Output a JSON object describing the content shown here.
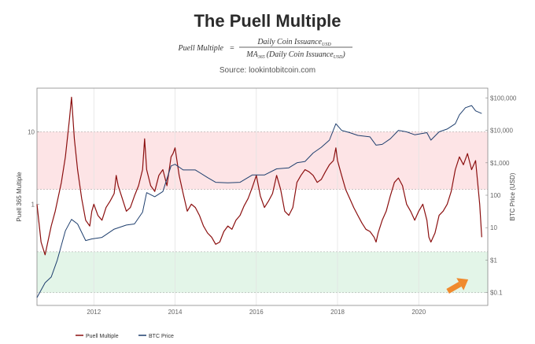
{
  "title": "The Puell Multiple",
  "formula": {
    "lhs": "Puell Multiple",
    "eq": "=",
    "numerator": "Daily Coin Issuance",
    "numerator_sub": "USD",
    "denominator_prefix": "MA",
    "denominator_prefix_sub": "365",
    "denominator_main": "(Daily Coin Issuance",
    "denominator_sub": "USD",
    "denominator_close": ")"
  },
  "source": "Source: lookintobitcoin.com",
  "colors": {
    "puell": "#8b0f0f",
    "btc": "#1f3f6e",
    "red_band": "#fde4e6",
    "green_band": "#e3f5e8",
    "arrow": "#f08a2e"
  },
  "icons": {
    "arrow": "arrow-up-right-icon"
  },
  "chart_data": {
    "type": "line",
    "xlim": [
      2010.6,
      2021.7
    ],
    "x_ticks": [
      "2012",
      "2014",
      "2016",
      "2018",
      "2020"
    ],
    "left_axis": {
      "label": "Puell 365 Multiple",
      "scale": "log",
      "range": [
        0.04,
        40
      ],
      "ticks": [
        "10",
        "1"
      ]
    },
    "right_axis": {
      "label": "BTC Price (USD)",
      "scale": "log",
      "range": [
        0.04,
        200000
      ],
      "ticks": [
        "$100,000",
        "$10,000",
        "$1,000",
        "100",
        "10",
        "$1",
        "$0.1"
      ]
    },
    "bands": [
      {
        "name": "red",
        "from": 1.6,
        "to": 10
      },
      {
        "name": "green",
        "from": 0.06,
        "to": 0.22
      }
    ],
    "legend": [
      "Puell Multiple",
      "BTC Price"
    ],
    "series": [
      {
        "name": "Puell Multiple",
        "x": [
          2010.6,
          2010.7,
          2010.8,
          2010.95,
          2011.05,
          2011.2,
          2011.3,
          2011.4,
          2011.45,
          2011.52,
          2011.6,
          2011.7,
          2011.8,
          2011.9,
          2011.95,
          2012.0,
          2012.1,
          2012.2,
          2012.3,
          2012.4,
          2012.5,
          2012.55,
          2012.6,
          2012.7,
          2012.8,
          2012.9,
          2013.0,
          2013.1,
          2013.2,
          2013.25,
          2013.3,
          2013.4,
          2013.5,
          2013.6,
          2013.7,
          2013.8,
          2013.9,
          2013.95,
          2014.0,
          2014.1,
          2014.2,
          2014.3,
          2014.4,
          2014.5,
          2014.6,
          2014.7,
          2014.8,
          2014.9,
          2015.0,
          2015.1,
          2015.2,
          2015.3,
          2015.4,
          2015.5,
          2015.6,
          2015.7,
          2015.8,
          2015.9,
          2016.0,
          2016.1,
          2016.2,
          2016.3,
          2016.4,
          2016.5,
          2016.6,
          2016.7,
          2016.8,
          2016.9,
          2017.0,
          2017.1,
          2017.2,
          2017.3,
          2017.4,
          2017.5,
          2017.6,
          2017.7,
          2017.8,
          2017.9,
          2017.96,
          2018.0,
          2018.1,
          2018.2,
          2018.3,
          2018.4,
          2018.5,
          2018.6,
          2018.7,
          2018.8,
          2018.9,
          2018.95,
          2019.0,
          2019.1,
          2019.2,
          2019.3,
          2019.4,
          2019.5,
          2019.6,
          2019.7,
          2019.8,
          2019.9,
          2020.0,
          2020.1,
          2020.2,
          2020.25,
          2020.3,
          2020.4,
          2020.5,
          2020.6,
          2020.7,
          2020.8,
          2020.9,
          2021.0,
          2021.1,
          2021.2,
          2021.3,
          2021.4,
          2021.5,
          2021.55
        ],
        "values": [
          1.0,
          0.3,
          0.2,
          0.5,
          0.8,
          2.0,
          4.5,
          15,
          30,
          8,
          3,
          1.2,
          0.6,
          0.5,
          0.8,
          1.0,
          0.7,
          0.6,
          0.9,
          1.1,
          1.4,
          2.5,
          1.8,
          1.2,
          0.8,
          0.9,
          1.3,
          1.8,
          3.0,
          8.0,
          3.0,
          1.8,
          1.5,
          2.5,
          3.0,
          1.8,
          4.5,
          5.0,
          6.0,
          2.5,
          1.4,
          0.8,
          1.0,
          0.9,
          0.7,
          0.5,
          0.4,
          0.35,
          0.28,
          0.3,
          0.42,
          0.5,
          0.45,
          0.6,
          0.7,
          0.95,
          1.2,
          1.7,
          2.5,
          1.3,
          0.9,
          1.1,
          1.4,
          2.5,
          1.6,
          0.8,
          0.7,
          0.9,
          2.0,
          2.5,
          3.0,
          2.8,
          2.5,
          2.0,
          2.2,
          2.8,
          3.5,
          4.0,
          6.0,
          4.0,
          2.5,
          1.6,
          1.2,
          0.9,
          0.7,
          0.55,
          0.45,
          0.42,
          0.35,
          0.3,
          0.4,
          0.6,
          0.8,
          1.3,
          2.0,
          2.3,
          1.8,
          1.0,
          0.8,
          0.6,
          0.8,
          1.0,
          0.6,
          0.35,
          0.3,
          0.4,
          0.7,
          0.8,
          1.0,
          1.5,
          3.0,
          4.5,
          3.5,
          5.0,
          3.0,
          4.0,
          1.0,
          0.35
        ]
      },
      {
        "name": "BTC Price",
        "x": [
          2010.6,
          2010.8,
          2010.95,
          2011.1,
          2011.3,
          2011.45,
          2011.6,
          2011.8,
          2011.95,
          2012.2,
          2012.5,
          2012.8,
          2013.0,
          2013.2,
          2013.3,
          2013.5,
          2013.7,
          2013.9,
          2014.0,
          2014.2,
          2014.5,
          2014.8,
          2015.0,
          2015.3,
          2015.6,
          2015.9,
          2016.2,
          2016.5,
          2016.8,
          2017.0,
          2017.2,
          2017.4,
          2017.6,
          2017.8,
          2017.96,
          2018.1,
          2018.3,
          2018.5,
          2018.8,
          2018.95,
          2019.1,
          2019.3,
          2019.5,
          2019.7,
          2019.9,
          2020.2,
          2020.3,
          2020.5,
          2020.7,
          2020.9,
          2021.0,
          2021.15,
          2021.3,
          2021.4,
          2021.55
        ],
        "values": [
          0.07,
          0.2,
          0.3,
          1.0,
          8.0,
          18,
          13,
          4.0,
          4.5,
          5.0,
          9.0,
          12,
          13,
          30,
          120,
          90,
          130,
          800,
          900,
          600,
          600,
          350,
          250,
          240,
          250,
          420,
          420,
          650,
          700,
          1000,
          1100,
          2000,
          3000,
          5000,
          16000,
          10000,
          8500,
          7000,
          6300,
          3500,
          3700,
          5500,
          10000,
          9000,
          7300,
          8500,
          5000,
          9000,
          11000,
          16000,
          30000,
          50000,
          58000,
          40000,
          33000
        ]
      }
    ]
  },
  "labels": {
    "left_axis_label": "Puell 365 Multiple",
    "right_axis_label": "BTC Price (USD)"
  }
}
